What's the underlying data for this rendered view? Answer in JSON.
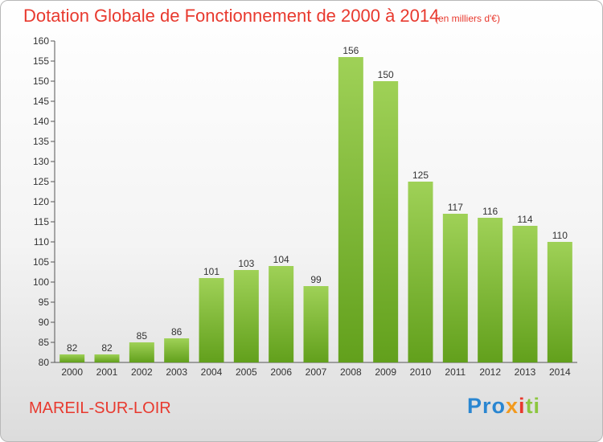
{
  "chart_data": {
    "type": "bar",
    "title": "Dotation Globale de Fonctionnement de 2000 à 2014",
    "subtitle": "(en milliers d'€)",
    "xlabel": "",
    "ylabel": "",
    "categories": [
      "2000",
      "2001",
      "2002",
      "2003",
      "2004",
      "2005",
      "2006",
      "2007",
      "2008",
      "2009",
      "2010",
      "2011",
      "2012",
      "2013",
      "2014"
    ],
    "values": [
      82,
      82,
      85,
      86,
      101,
      103,
      104,
      99,
      156,
      150,
      125,
      117,
      116,
      114,
      110
    ],
    "ylim": [
      80,
      160
    ],
    "yticks": [
      80,
      85,
      90,
      95,
      100,
      105,
      110,
      115,
      120,
      125,
      130,
      135,
      140,
      145,
      150,
      155,
      160
    ],
    "grid": false,
    "colors": {
      "bar_top": "#9fd157",
      "bar_bottom": "#62a01c",
      "title": "#e8392e"
    }
  },
  "footer": {
    "commune": "MAREIL-SUR-LOIR",
    "logo_parts": [
      "Pro",
      "x",
      "i",
      "ti"
    ]
  }
}
